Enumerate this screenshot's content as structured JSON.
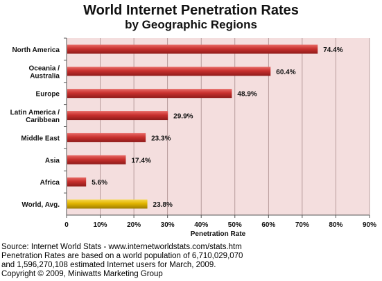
{
  "chart_data": {
    "type": "bar",
    "orientation": "horizontal",
    "title": "World Internet Penetration Rates",
    "subtitle": "by Geographic Regions",
    "xlabel": "Penetration Rate",
    "ylabel": "",
    "xlim": [
      0,
      90
    ],
    "x_ticks": [
      "0",
      "10%",
      "20%",
      "30%",
      "40%",
      "50%",
      "60%",
      "70%",
      "80%",
      "90%"
    ],
    "grid": true,
    "categories": [
      [
        "North America"
      ],
      [
        "Oceania  /",
        "Australia"
      ],
      [
        "Europe"
      ],
      [
        "Latin America /",
        "Caribbean"
      ],
      [
        "Middle East"
      ],
      [
        "Asia"
      ],
      [
        "Africa"
      ],
      [
        "World, Avg."
      ]
    ],
    "values": [
      74.4,
      60.4,
      48.9,
      29.9,
      23.3,
      17.4,
      5.6,
      23.8
    ],
    "value_labels": [
      "74.4%",
      "60.4%",
      "48.9%",
      "29.9%",
      "23.3%",
      "17.4%",
      "5.6%",
      "23.8%"
    ],
    "colors": {
      "bar": "#c8302e",
      "highlight_bar": "#e0b400",
      "plot_background": "#f4dede"
    }
  },
  "footer": {
    "line1": "Source: Internet World Stats - www.internetworldstats.com/stats.htm",
    "line2": "Penetration Rates are based on a world population of 6,710,029,070",
    "line3": "and 1,596,270,108 estimated Internet users for March, 2009.",
    "line4": "Copyright © 2009, Miniwatts Marketing Group"
  }
}
